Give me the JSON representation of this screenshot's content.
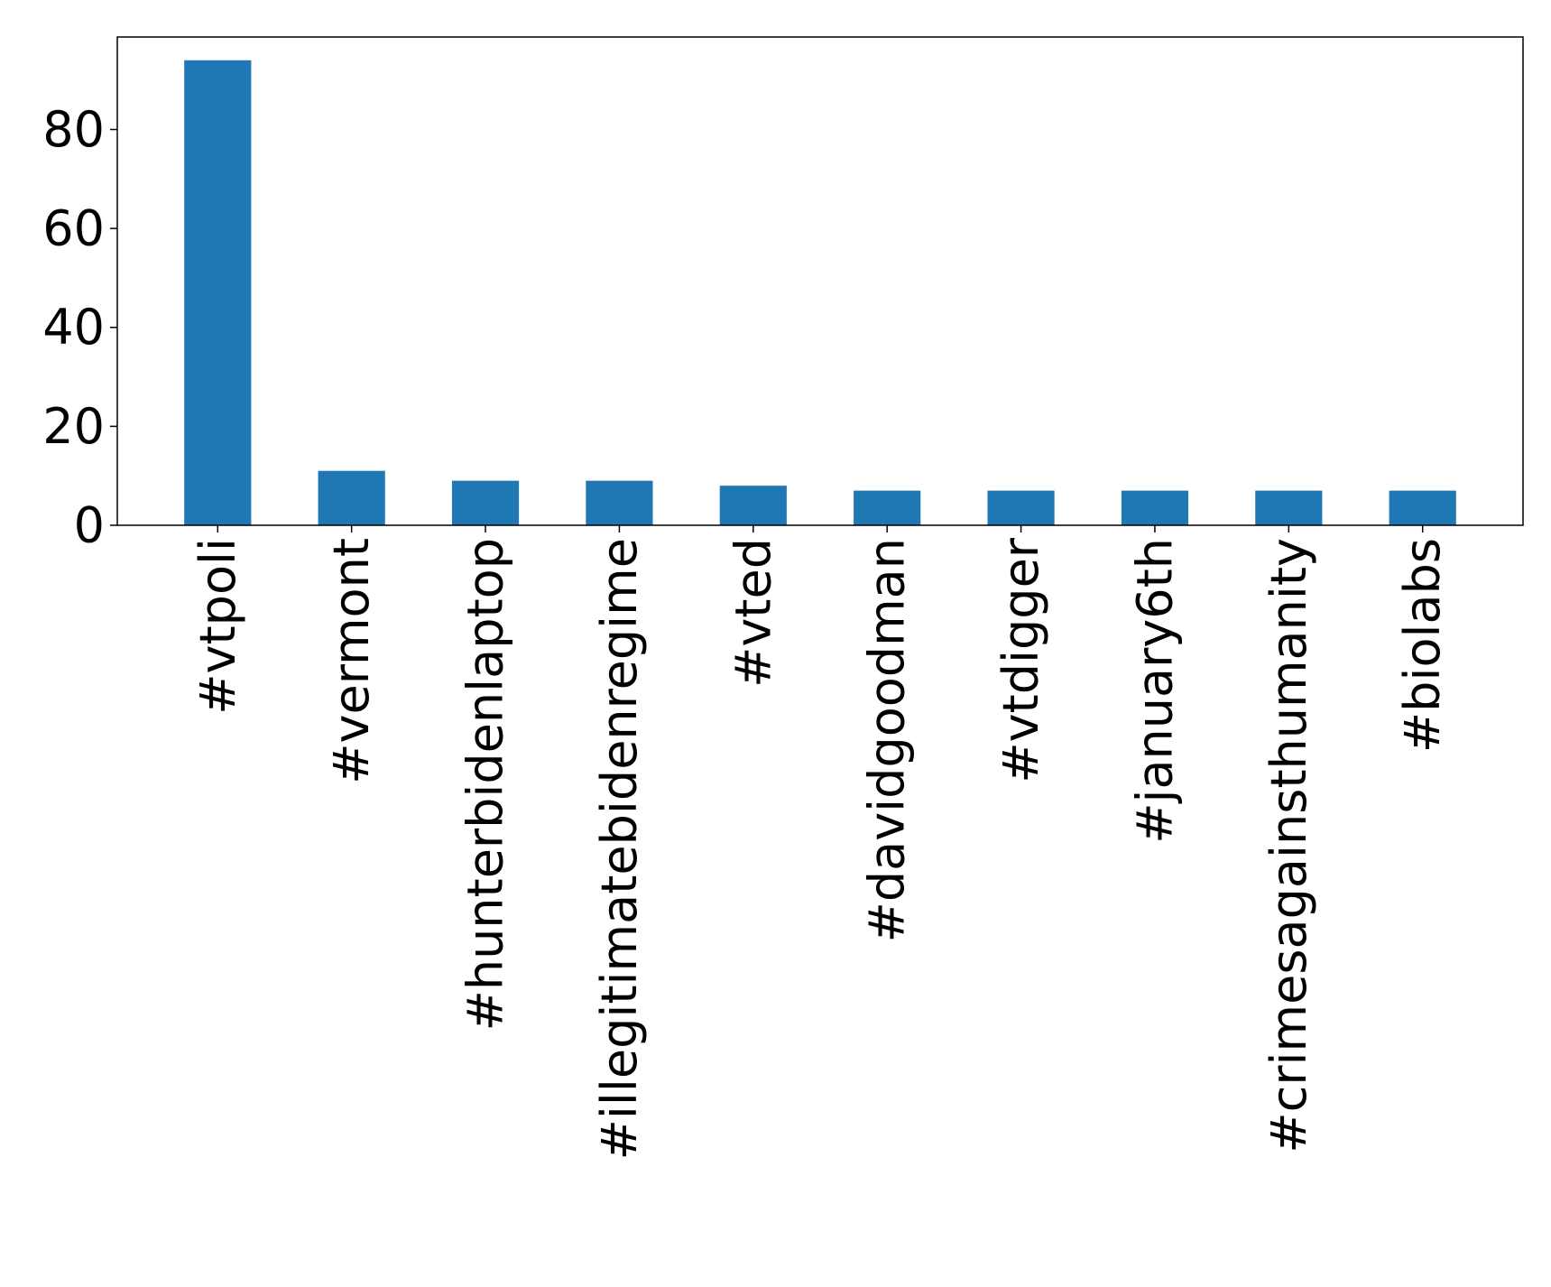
{
  "chart_data": {
    "type": "bar",
    "title": "",
    "xlabel": "",
    "ylabel": "",
    "categories": [
      "#vtpoli",
      "#vermont",
      "#hunterbidenlaptop",
      "#illegitimatebidenregime",
      "#vted",
      "#davidgoodman",
      "#vtdigger",
      "#january6th",
      "#crimesagainsthumanity",
      "#biolabs"
    ],
    "values": [
      94,
      11,
      9,
      9,
      8,
      7,
      7,
      7,
      7,
      7
    ],
    "ylim": [
      0,
      98.7
    ],
    "yticks": [
      0,
      20,
      40,
      60,
      80
    ],
    "grid": false,
    "legend": "none",
    "colors": {
      "bar": "#1f77b4",
      "axes": "#000000",
      "background": "#ffffff"
    }
  }
}
